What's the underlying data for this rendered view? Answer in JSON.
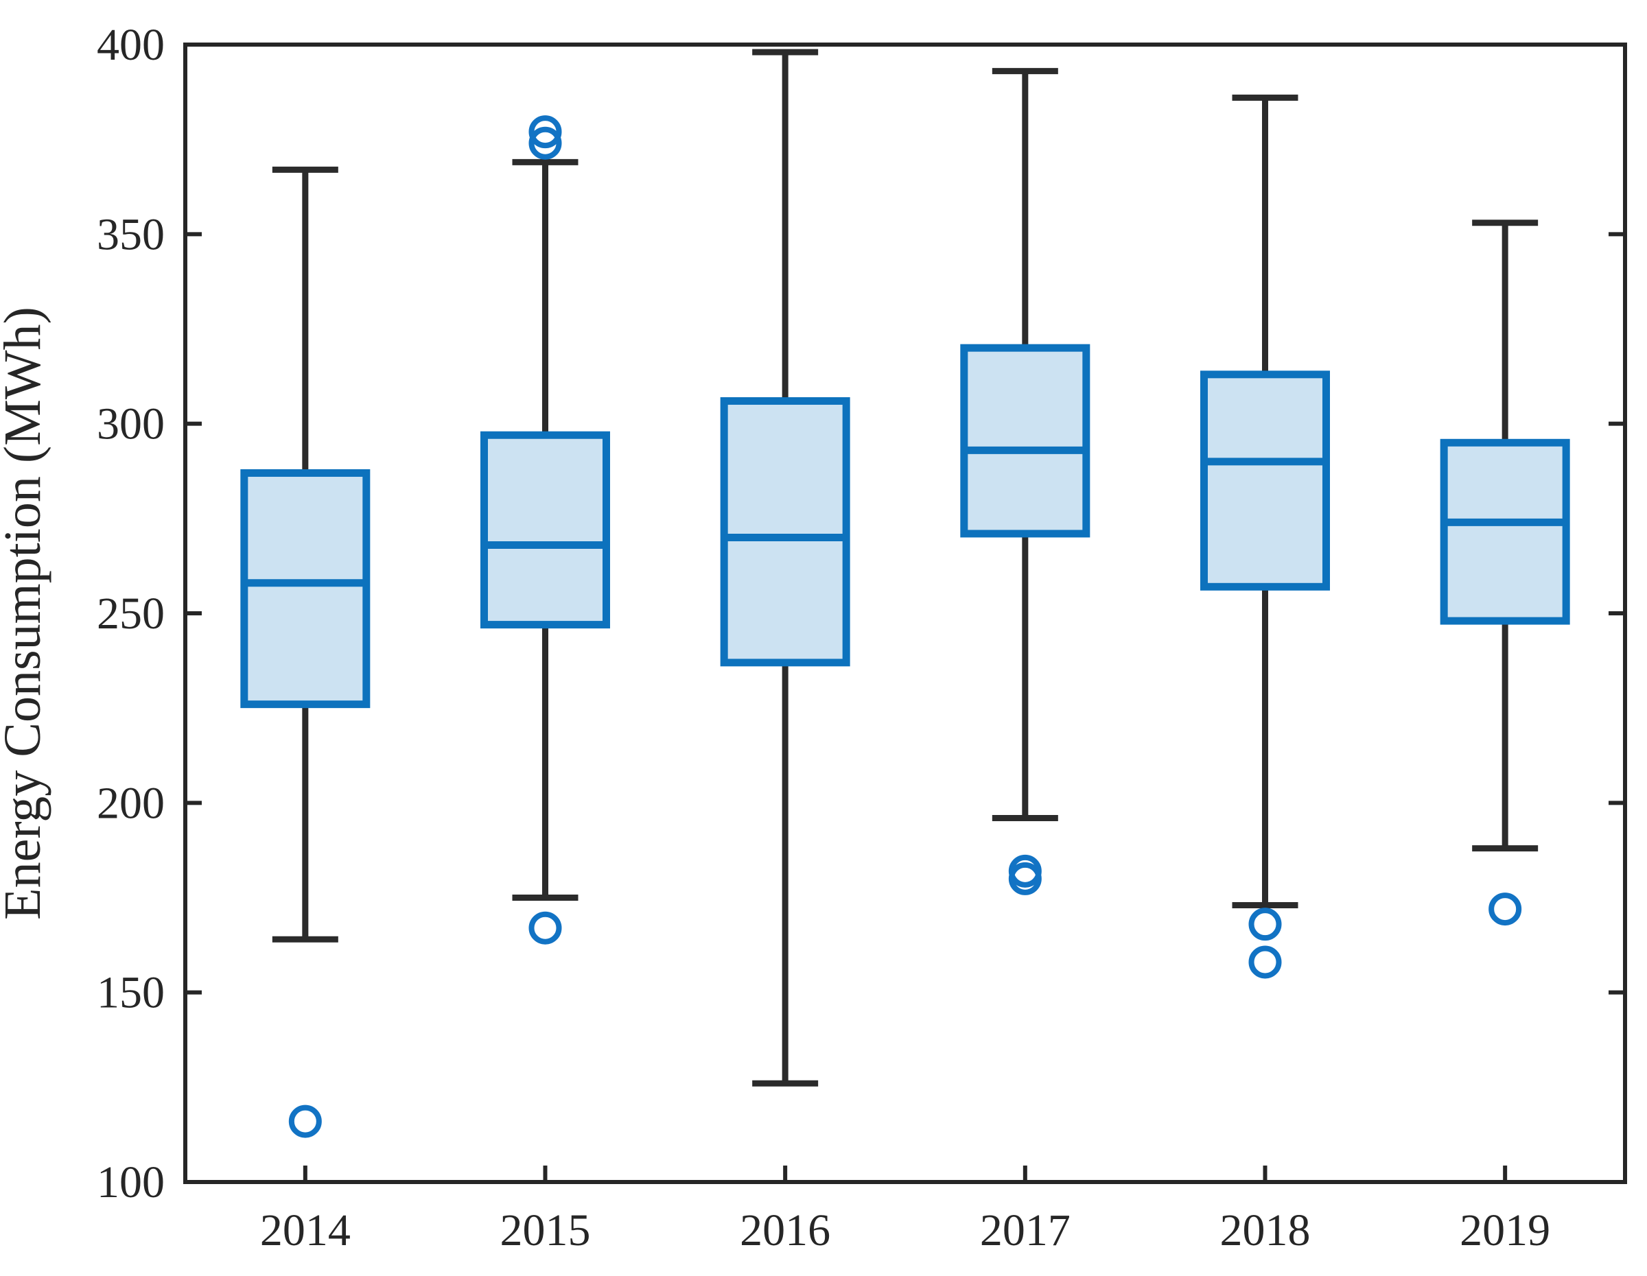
{
  "chart_data": {
    "type": "boxplot",
    "title": "",
    "xlabel": "",
    "ylabel": "Energy Consumption (MWh)",
    "ylim": [
      100,
      400
    ],
    "yticks": [
      100,
      150,
      200,
      250,
      300,
      350,
      400
    ],
    "categories": [
      "2014",
      "2015",
      "2016",
      "2017",
      "2018",
      "2019"
    ],
    "series": [
      {
        "year": "2014",
        "whisker_low": 164,
        "q1": 226,
        "median": 258,
        "q3": 287,
        "whisker_high": 367,
        "outliers": [
          116
        ]
      },
      {
        "year": "2015",
        "whisker_low": 175,
        "q1": 247,
        "median": 268,
        "q3": 297,
        "whisker_high": 369,
        "outliers": [
          167,
          374,
          377
        ]
      },
      {
        "year": "2016",
        "whisker_low": 126,
        "q1": 237,
        "median": 270,
        "q3": 306,
        "whisker_high": 398,
        "outliers": []
      },
      {
        "year": "2017",
        "whisker_low": 196,
        "q1": 271,
        "median": 293,
        "q3": 320,
        "whisker_high": 393,
        "outliers": [
          180,
          182
        ]
      },
      {
        "year": "2018",
        "whisker_low": 173,
        "q1": 257,
        "median": 290,
        "q3": 313,
        "whisker_high": 386,
        "outliers": [
          158,
          168
        ]
      },
      {
        "year": "2019",
        "whisker_low": 188,
        "q1": 248,
        "median": 274,
        "q3": 295,
        "whisker_high": 353,
        "outliers": [
          172
        ]
      }
    ],
    "legend": null,
    "grid": "off",
    "colors": {
      "box_edge": "#0d72bd",
      "box_fill": "#cce2f2",
      "median_line": "#0d72bd",
      "whisker": "#2b2b2b",
      "outlier_ring": "#1273c4",
      "axis": "#262626"
    }
  }
}
